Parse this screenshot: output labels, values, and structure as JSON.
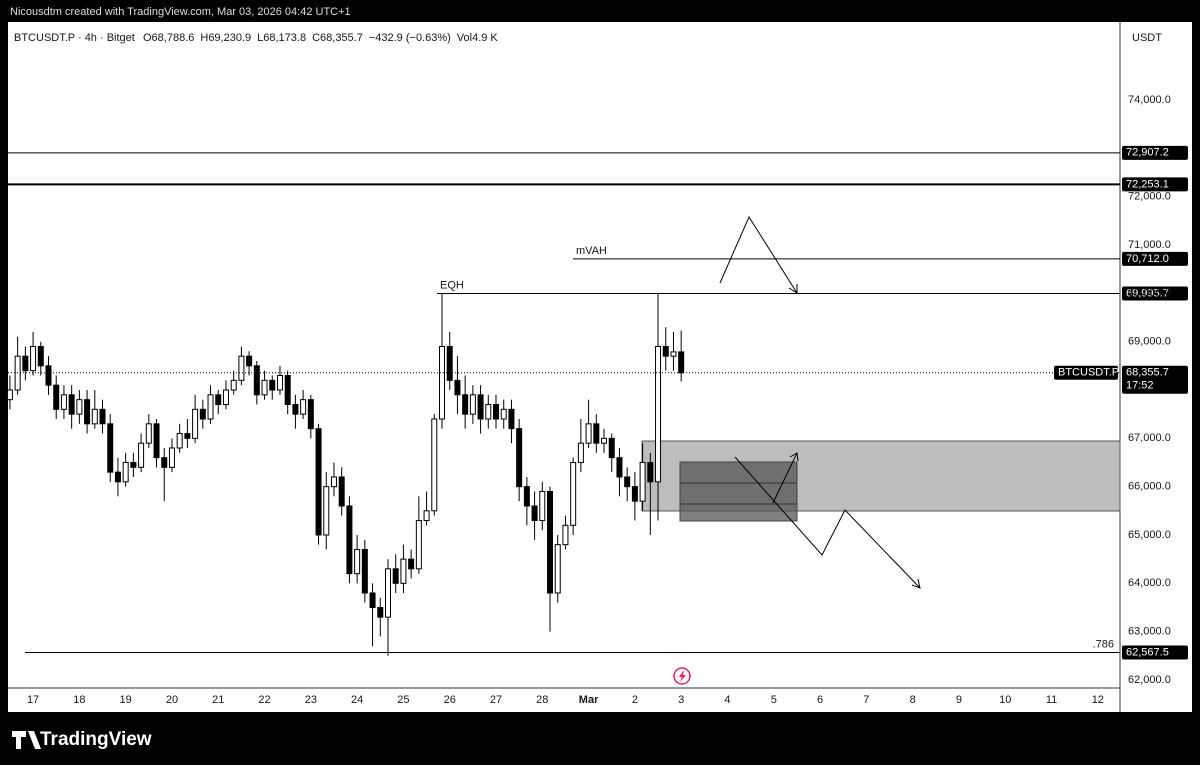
{
  "chart_data": {
    "type": "candlestick",
    "watermark": "Nicousdtm created with TradingView.com, Mar 03, 2026 04:42 UTC+1",
    "brand": "TradingView",
    "currency": "USDT",
    "legend": {
      "symbol": "BTCUSDT.P · 4h · Bitget",
      "ohlc": [
        "O68,788.6",
        "H69,230.9",
        "L68,173.8",
        "C68,355.7"
      ],
      "change": "−432.9 (−0.63%)",
      "volume": "Vol4.9 K"
    },
    "xlim": [
      -13,
      563.5
    ],
    "ylim": [
      61834,
      75614
    ],
    "xticks": [
      {
        "value": 0,
        "label": "17"
      },
      {
        "value": 24,
        "label": "18"
      },
      {
        "value": 48,
        "label": "19"
      },
      {
        "value": 72,
        "label": "20"
      },
      {
        "value": 96,
        "label": "21"
      },
      {
        "value": 120,
        "label": "22"
      },
      {
        "value": 144,
        "label": "23"
      },
      {
        "value": 168,
        "label": "24"
      },
      {
        "value": 192,
        "label": "25"
      },
      {
        "value": 216,
        "label": "26"
      },
      {
        "value": 240,
        "label": "27"
      },
      {
        "value": 264,
        "label": "28"
      },
      {
        "value": 288,
        "label": "Mar"
      },
      {
        "value": 312,
        "label": "2"
      },
      {
        "value": 336,
        "label": "3"
      },
      {
        "value": 360,
        "label": "4"
      },
      {
        "value": 384,
        "label": "5"
      },
      {
        "value": 408,
        "label": "6"
      },
      {
        "value": 432,
        "label": "7"
      },
      {
        "value": 456,
        "label": "8"
      },
      {
        "value": 480,
        "label": "9"
      },
      {
        "value": 504,
        "label": "10"
      },
      {
        "value": 528,
        "label": "11"
      },
      {
        "value": 552,
        "label": "12"
      }
    ],
    "yticks": [
      {
        "value": 62000,
        "label": "62,000.0"
      },
      {
        "value": 63000,
        "label": "63,000.0"
      },
      {
        "value": 64000,
        "label": "64,000.0"
      },
      {
        "value": 65000,
        "label": "65,000.0"
      },
      {
        "value": 66000,
        "label": "66,000.0"
      },
      {
        "value": 67000,
        "label": "67,000.0"
      },
      {
        "value": 69000,
        "label": "69,000.0"
      },
      {
        "value": 70000,
        "label": "70,000.0"
      },
      {
        "value": 71000,
        "label": "71,000.0"
      },
      {
        "value": 72000,
        "label": "72,000.0"
      },
      {
        "value": 74000,
        "label": "74,000.0"
      }
    ],
    "x": [
      -12,
      -8,
      -4,
      0,
      4,
      8,
      12,
      16,
      20,
      24,
      28,
      32,
      36,
      40,
      44,
      48,
      52,
      56,
      60,
      64,
      68,
      72,
      76,
      80,
      84,
      88,
      92,
      96,
      100,
      104,
      108,
      112,
      116,
      120,
      124,
      128,
      132,
      136,
      140,
      144,
      148,
      152,
      156,
      160,
      164,
      168,
      172,
      176,
      180,
      184,
      188,
      192,
      196,
      200,
      204,
      208,
      212,
      216,
      220,
      224,
      228,
      232,
      236,
      240,
      244,
      248,
      252,
      256,
      260,
      264,
      268,
      272,
      276,
      280,
      284,
      288,
      292,
      296,
      300,
      304,
      308,
      312,
      316,
      320,
      324,
      328,
      332,
      336
    ],
    "open": [
      67800,
      68000,
      68700,
      68400,
      68900,
      68500,
      68100,
      67600,
      67900,
      67500,
      67800,
      67300,
      67600,
      67300,
      66300,
      66100,
      66500,
      66400,
      66900,
      67300,
      66600,
      66400,
      66800,
      67100,
      67000,
      67600,
      67400,
      67900,
      67700,
      68000,
      68200,
      68700,
      68500,
      67900,
      68200,
      68000,
      68300,
      67700,
      67500,
      67800,
      67200,
      65000,
      66000,
      66200,
      65600,
      64200,
      64700,
      63800,
      63500,
      63300,
      64300,
      64000,
      64500,
      64300,
      65300,
      65500,
      67400,
      68900,
      68200,
      67900,
      67500,
      67900,
      67400,
      67700,
      67400,
      67600,
      67200,
      66000,
      65600,
      65300,
      65900,
      63800,
      64800,
      65200,
      66500,
      66900,
      67300,
      66900,
      67000,
      66600,
      66200,
      66000,
      65700,
      66500,
      66100,
      68900,
      68700,
      68788.6
    ],
    "high": [
      68300,
      69100,
      68900,
      69200,
      69000,
      68700,
      68300,
      68100,
      68100,
      68000,
      68000,
      68000,
      67800,
      67500,
      66600,
      66700,
      66700,
      67100,
      67500,
      67400,
      66800,
      67000,
      67300,
      67400,
      67900,
      67800,
      68100,
      68000,
      68200,
      68400,
      68900,
      68800,
      68600,
      68400,
      68300,
      68500,
      68400,
      67900,
      68000,
      67900,
      67300,
      66300,
      66500,
      66400,
      65800,
      65000,
      64900,
      64000,
      63700,
      64500,
      64600,
      64800,
      64700,
      65800,
      65900,
      67500,
      70000,
      69200,
      68700,
      68300,
      68100,
      68100,
      67900,
      67900,
      67800,
      67800,
      67400,
      66200,
      65900,
      66100,
      66000,
      65000,
      65400,
      66600,
      67400,
      67800,
      67500,
      67200,
      67100,
      66800,
      66400,
      66300,
      66900,
      66700,
      70000,
      69300,
      69200,
      69230.9
    ],
    "low": [
      67600,
      67900,
      68200,
      68300,
      68300,
      67900,
      67400,
      67400,
      67200,
      67300,
      67100,
      67200,
      67100,
      66100,
      65800,
      66000,
      66200,
      66300,
      66800,
      66400,
      65700,
      66300,
      66700,
      66800,
      66900,
      67200,
      67300,
      67500,
      67600,
      67900,
      68100,
      68300,
      67700,
      67800,
      67800,
      67900,
      67500,
      67200,
      67400,
      67000,
      64800,
      64700,
      65800,
      65400,
      64000,
      64000,
      63600,
      62700,
      62900,
      62500,
      63800,
      63800,
      64100,
      64200,
      65200,
      65400,
      67200,
      68000,
      67500,
      67200,
      67300,
      67100,
      67200,
      67200,
      67200,
      66900,
      65700,
      65200,
      64900,
      65100,
      63000,
      63600,
      64700,
      65000,
      66300,
      66800,
      66700,
      66700,
      66300,
      65800,
      65700,
      65300,
      65500,
      65000,
      65300,
      68400,
      68400,
      68173.8
    ],
    "close": [
      68000,
      68700,
      68400,
      68900,
      68500,
      68100,
      67600,
      67900,
      67500,
      67800,
      67300,
      67600,
      67300,
      66300,
      66100,
      66500,
      66400,
      66900,
      67300,
      66600,
      66400,
      66800,
      67100,
      67000,
      67600,
      67400,
      67900,
      67700,
      68000,
      68200,
      68700,
      68500,
      67900,
      68200,
      68000,
      68300,
      67700,
      67500,
      67800,
      67200,
      65000,
      66000,
      66200,
      65600,
      64200,
      64700,
      63800,
      63500,
      63300,
      64300,
      64000,
      64500,
      64300,
      65300,
      65500,
      67400,
      68900,
      68200,
      67900,
      67500,
      67900,
      67400,
      67700,
      67400,
      67600,
      67200,
      66000,
      65600,
      65300,
      65900,
      63800,
      64800,
      65200,
      66500,
      66900,
      67300,
      66900,
      67000,
      66600,
      66200,
      66000,
      65700,
      66500,
      66100,
      68900,
      68700,
      68788.6,
      68355.7
    ],
    "up_color": "#ffffff",
    "down_color": "#000000",
    "levels": [
      {
        "value": 72907.2,
        "label": "72,907.2"
      },
      {
        "value": 72253.1,
        "label": "72,253.1"
      },
      {
        "value": 70712,
        "label": "70,712.0",
        "name": "mVAH"
      },
      {
        "value": 69995.7,
        "label": "69,995.7",
        "name": "EQH"
      },
      {
        "value": 62567.5,
        "label": "62,567.5",
        "name": ".786"
      }
    ],
    "last": {
      "value": 68355.7,
      "symbol": "BTCUSDT.P",
      "label": "68,355.7",
      "countdown": "17:52"
    }
  }
}
